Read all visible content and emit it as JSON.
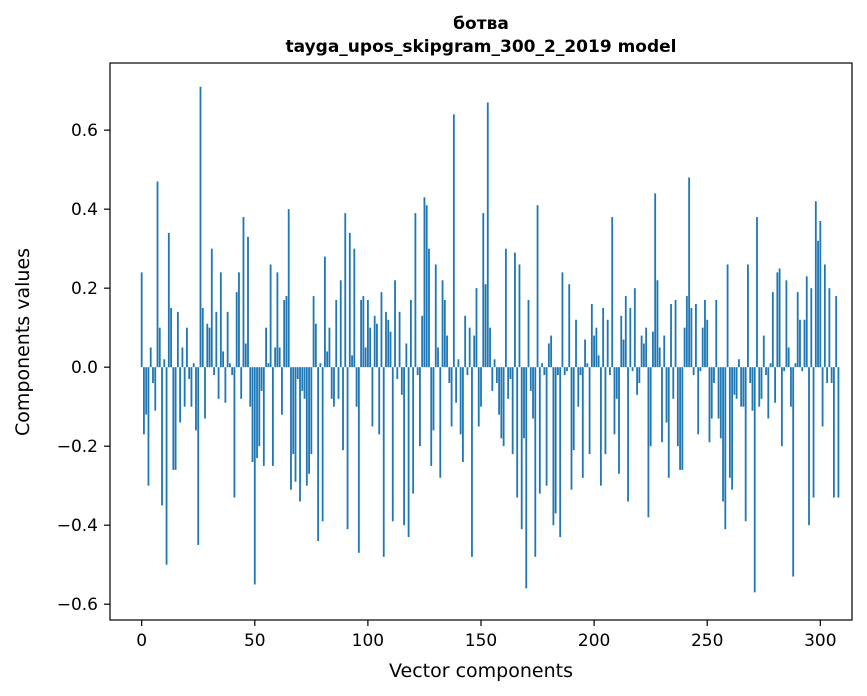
{
  "chart_data": {
    "type": "bar",
    "title": "ботва",
    "subtitle": "tayga_upos_skipgram_300_2_2019 model",
    "xlabel": "Vector components",
    "ylabel": "Components values",
    "xlim": [
      -14,
      314
    ],
    "ylim": [
      -0.64,
      0.77
    ],
    "xticks": [
      0,
      50,
      100,
      150,
      200,
      250,
      300
    ],
    "yticks": [
      -0.6,
      -0.4,
      -0.2,
      0.0,
      0.2,
      0.4,
      0.6
    ],
    "ytick_labels": [
      "−0.6",
      "−0.4",
      "−0.2",
      "0.0",
      "0.2",
      "0.4",
      "0.6"
    ],
    "bar_color": "#1f77b4",
    "values": [
      0.24,
      -0.17,
      -0.12,
      -0.3,
      0.05,
      -0.04,
      -0.11,
      0.47,
      0.1,
      -0.35,
      0.02,
      -0.5,
      0.34,
      0.15,
      -0.26,
      -0.26,
      0.14,
      -0.14,
      0.05,
      -0.1,
      0.1,
      -0.03,
      -0.1,
      0.01,
      -0.16,
      -0.45,
      0.71,
      0.15,
      -0.13,
      0.11,
      0.1,
      0.3,
      -0.02,
      0.14,
      -0.08,
      0.24,
      0.04,
      -0.09,
      0.14,
      0.01,
      -0.02,
      -0.33,
      0.19,
      0.24,
      -0.08,
      0.38,
      0.06,
      0.33,
      -0.1,
      -0.24,
      -0.55,
      -0.23,
      -0.2,
      -0.06,
      -0.25,
      0.1,
      0.01,
      0.26,
      -0.25,
      0.05,
      0.24,
      0.05,
      -0.12,
      0.17,
      0.18,
      0.4,
      -0.31,
      -0.22,
      -0.29,
      -0.03,
      -0.34,
      -0.06,
      -0.08,
      -0.3,
      -0.27,
      -0.22,
      0.18,
      0.11,
      -0.44,
      0.01,
      -0.39,
      0.28,
      0.04,
      0.1,
      -0.08,
      -0.1,
      0.17,
      -0.08,
      0.22,
      -0.21,
      0.39,
      -0.41,
      0.34,
      0.03,
      0.3,
      -0.1,
      -0.47,
      0.17,
      0.18,
      0.05,
      0.17,
      0.1,
      -0.15,
      0.13,
      0.11,
      -0.17,
      0.19,
      -0.48,
      0.14,
      0.12,
      0.09,
      -0.39,
      0.22,
      -0.03,
      0.14,
      -0.07,
      -0.4,
      0.06,
      -0.43,
      0.17,
      -0.32,
      0.39,
      -0.02,
      -0.2,
      0.13,
      0.43,
      0.41,
      0.3,
      -0.25,
      -0.16,
      0.26,
      0.05,
      -0.28,
      0.22,
      0.17,
      0.08,
      -0.04,
      -0.15,
      0.64,
      -0.09,
      0.02,
      -0.17,
      -0.24,
      0.13,
      -0.02,
      0.1,
      -0.48,
      0.08,
      0.2,
      -0.15,
      -0.1,
      0.39,
      0.21,
      0.67,
      0.1,
      -0.06,
      0.02,
      -0.04,
      -0.12,
      -0.18,
      -0.2,
      0.3,
      -0.08,
      -0.03,
      -0.22,
      0.29,
      -0.33,
      0.26,
      -0.41,
      -0.18,
      -0.56,
      0.17,
      -0.06,
      -0.13,
      -0.48,
      0.41,
      -0.32,
      0.01,
      -0.02,
      -0.3,
      0.06,
      0.08,
      -0.4,
      -0.37,
      -0.02,
      -0.43,
      0.24,
      -0.02,
      -0.01,
      0.21,
      -0.31,
      -0.21,
      0.12,
      -0.1,
      -0.02,
      -0.28,
      0.07,
      0.01,
      -0.22,
      0.16,
      0.08,
      0.1,
      0.03,
      -0.3,
      0.15,
      -0.22,
      0.12,
      -0.02,
      0.38,
      -0.17,
      -0.08,
      -0.27,
      0.13,
      0.07,
      0.18,
      -0.34,
      0.15,
      -0.01,
      0.2,
      -0.07,
      -0.04,
      0.08,
      0.06,
      0.1,
      -0.38,
      -0.2,
      0.09,
      0.44,
      0.22,
      0.05,
      -0.19,
      0.08,
      -0.14,
      -0.28,
      0.16,
      -0.08,
      0.17,
      -0.2,
      -0.26,
      -0.26,
      0.1,
      0.18,
      0.48,
      0.15,
      -0.02,
      0.16,
      -0.17,
      -0.01,
      0.1,
      0.17,
      0.12,
      -0.19,
      -0.13,
      -0.04,
      0.17,
      -0.13,
      -0.18,
      -0.34,
      -0.41,
      0.26,
      -0.28,
      -0.31,
      -0.07,
      -0.08,
      0.02,
      -0.1,
      -0.1,
      -0.39,
      0.26,
      -0.04,
      -0.11,
      -0.57,
      0.38,
      -0.1,
      -0.08,
      0.08,
      -0.02,
      -0.13,
      0.01,
      0.19,
      -0.09,
      0.24,
      0.25,
      -0.2,
      -0.01,
      0.22,
      0.05,
      -0.1,
      -0.53,
      0.01,
      0.19,
      0.12,
      -0.01,
      0.12,
      0.23,
      -0.4,
      0.2,
      -0.33,
      0.42,
      0.32,
      0.37,
      -0.15,
      0.26,
      -0.04,
      0.2,
      -0.04,
      -0.33,
      0.18,
      -0.33
    ]
  }
}
